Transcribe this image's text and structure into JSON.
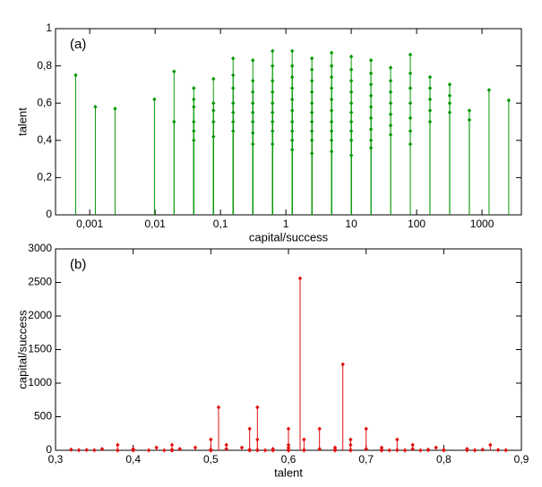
{
  "chart_data": [
    {
      "type": "stem",
      "title": "(a)",
      "x_label": "capital/success",
      "y_label": "talent",
      "color": "#0a9a0a",
      "xlog": true,
      "xlim": [
        0.0003,
        4000
      ],
      "xticks": [
        {
          "value": 0.001,
          "label": "0,001"
        },
        {
          "value": 0.01,
          "label": "0,01"
        },
        {
          "value": 0.1,
          "label": "0,1"
        },
        1,
        10,
        100,
        1000
      ],
      "ylim": [
        0,
        1
      ],
      "yticks": [
        0,
        {
          "value": 0.2,
          "label": "0,2"
        },
        {
          "value": 0.4,
          "label": "0,4"
        },
        {
          "value": 0.6,
          "label": "0,6"
        },
        {
          "value": 0.8,
          "label": "0,8"
        },
        1
      ],
      "x": [
        0.00061,
        0.00122,
        0.00244,
        0.00977,
        0.0195,
        0.0195,
        0.039,
        0.039,
        0.039,
        0.039,
        0.039,
        0.039,
        0.078,
        0.078,
        0.078,
        0.078,
        0.078,
        0.156,
        0.156,
        0.156,
        0.156,
        0.156,
        0.156,
        0.156,
        0.3125,
        0.3125,
        0.3125,
        0.3125,
        0.3125,
        0.3125,
        0.3125,
        0.3125,
        0.625,
        0.625,
        0.625,
        0.625,
        0.625,
        0.625,
        0.625,
        0.625,
        0.625,
        1.25,
        1.25,
        1.25,
        1.25,
        1.25,
        1.25,
        1.25,
        1.25,
        1.25,
        1.25,
        2.5,
        2.5,
        2.5,
        2.5,
        2.5,
        2.5,
        2.5,
        2.5,
        2.5,
        2.5,
        5,
        5,
        5,
        5,
        5,
        5,
        5,
        5,
        5,
        5,
        10,
        10,
        10,
        10,
        10,
        10,
        10,
        10,
        10,
        10,
        20,
        20,
        20,
        20,
        20,
        20,
        20,
        20,
        20,
        40,
        40,
        40,
        40,
        40,
        40,
        40,
        80,
        80,
        80,
        80,
        80,
        80,
        80,
        160,
        160,
        160,
        160,
        160,
        320,
        320,
        320,
        320,
        640,
        640,
        1280,
        2560
      ],
      "y": [
        0.75,
        0.58,
        0.57,
        0.62,
        0.77,
        0.5,
        0.68,
        0.62,
        0.58,
        0.5,
        0.45,
        0.4,
        0.73,
        0.6,
        0.56,
        0.5,
        0.42,
        0.84,
        0.75,
        0.68,
        0.6,
        0.55,
        0.5,
        0.45,
        0.83,
        0.72,
        0.66,
        0.6,
        0.55,
        0.5,
        0.44,
        0.38,
        0.88,
        0.8,
        0.72,
        0.66,
        0.6,
        0.55,
        0.5,
        0.45,
        0.38,
        0.88,
        0.8,
        0.74,
        0.68,
        0.62,
        0.56,
        0.5,
        0.45,
        0.4,
        0.35,
        0.84,
        0.78,
        0.72,
        0.66,
        0.6,
        0.55,
        0.5,
        0.45,
        0.4,
        0.33,
        0.87,
        0.8,
        0.74,
        0.68,
        0.62,
        0.56,
        0.5,
        0.45,
        0.4,
        0.34,
        0.85,
        0.78,
        0.72,
        0.66,
        0.6,
        0.55,
        0.5,
        0.45,
        0.4,
        0.32,
        0.83,
        0.76,
        0.7,
        0.64,
        0.58,
        0.52,
        0.46,
        0.4,
        0.36,
        0.79,
        0.72,
        0.66,
        0.6,
        0.54,
        0.48,
        0.43,
        0.86,
        0.76,
        0.68,
        0.6,
        0.52,
        0.45,
        0.38,
        0.74,
        0.68,
        0.62,
        0.56,
        0.5,
        0.7,
        0.64,
        0.6,
        0.55,
        0.56,
        0.51,
        0.67,
        0.615
      ]
    },
    {
      "type": "stem",
      "title": "(b)",
      "x_label": "talent",
      "y_label": "capital/success",
      "color": "#e01010",
      "xlog": false,
      "xlim": [
        0.3,
        0.9
      ],
      "xticks": [
        {
          "value": 0.3,
          "label": "0,3"
        },
        {
          "value": 0.4,
          "label": "0,4"
        },
        {
          "value": 0.5,
          "label": "0,5"
        },
        {
          "value": 0.6,
          "label": "0,6"
        },
        {
          "value": 0.7,
          "label": "0,7"
        },
        {
          "value": 0.8,
          "label": "0,8"
        },
        {
          "value": 0.9,
          "label": "0,9"
        }
      ],
      "ylim": [
        0,
        3000
      ],
      "yticks": [
        0,
        500,
        1000,
        1500,
        2000,
        2500,
        3000
      ],
      "x": [
        0.75,
        0.58,
        0.57,
        0.62,
        0.77,
        0.5,
        0.68,
        0.62,
        0.58,
        0.5,
        0.45,
        0.4,
        0.73,
        0.6,
        0.56,
        0.5,
        0.42,
        0.84,
        0.75,
        0.68,
        0.6,
        0.55,
        0.5,
        0.45,
        0.83,
        0.72,
        0.66,
        0.6,
        0.55,
        0.5,
        0.44,
        0.38,
        0.88,
        0.8,
        0.72,
        0.66,
        0.6,
        0.55,
        0.5,
        0.45,
        0.38,
        0.88,
        0.8,
        0.74,
        0.68,
        0.62,
        0.56,
        0.5,
        0.45,
        0.4,
        0.35,
        0.84,
        0.78,
        0.72,
        0.66,
        0.6,
        0.55,
        0.5,
        0.45,
        0.4,
        0.33,
        0.87,
        0.8,
        0.74,
        0.68,
        0.62,
        0.56,
        0.5,
        0.45,
        0.4,
        0.34,
        0.85,
        0.78,
        0.72,
        0.66,
        0.6,
        0.55,
        0.5,
        0.45,
        0.4,
        0.32,
        0.83,
        0.76,
        0.7,
        0.64,
        0.58,
        0.52,
        0.46,
        0.4,
        0.36,
        0.79,
        0.72,
        0.66,
        0.6,
        0.54,
        0.48,
        0.43,
        0.86,
        0.76,
        0.68,
        0.6,
        0.52,
        0.45,
        0.38,
        0.74,
        0.68,
        0.62,
        0.56,
        0.5,
        0.7,
        0.64,
        0.6,
        0.55,
        0.56,
        0.51,
        0.67,
        0.615
      ],
      "y": [
        0.00061,
        0.00122,
        0.00244,
        0.00977,
        0.0195,
        0.0195,
        0.039,
        0.039,
        0.039,
        0.039,
        0.039,
        0.039,
        0.078,
        0.078,
        0.078,
        0.078,
        0.078,
        0.156,
        0.156,
        0.156,
        0.156,
        0.156,
        0.156,
        0.156,
        0.3125,
        0.3125,
        0.3125,
        0.3125,
        0.3125,
        0.3125,
        0.3125,
        0.3125,
        0.625,
        0.625,
        0.625,
        0.625,
        0.625,
        0.625,
        0.625,
        0.625,
        0.625,
        1.25,
        1.25,
        1.25,
        1.25,
        1.25,
        1.25,
        1.25,
        1.25,
        1.25,
        1.25,
        2.5,
        2.5,
        2.5,
        2.5,
        2.5,
        2.5,
        2.5,
        2.5,
        2.5,
        2.5,
        5,
        5,
        5,
        5,
        5,
        5,
        5,
        5,
        5,
        5,
        10,
        10,
        10,
        10,
        10,
        10,
        10,
        10,
        10,
        10,
        20,
        20,
        20,
        20,
        20,
        20,
        20,
        20,
        20,
        40,
        40,
        40,
        40,
        40,
        40,
        40,
        80,
        80,
        80,
        80,
        80,
        80,
        80,
        160,
        160,
        160,
        160,
        160,
        320,
        320,
        320,
        320,
        640,
        640,
        1280,
        2560
      ]
    }
  ]
}
